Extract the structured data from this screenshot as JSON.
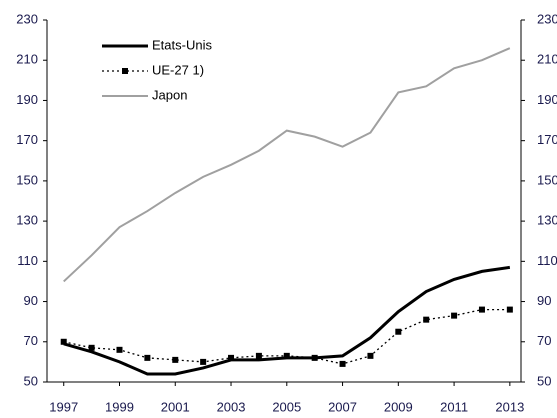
{
  "chart_data": {
    "type": "line",
    "x": [
      1997,
      1998,
      1999,
      2000,
      2001,
      2002,
      2003,
      2004,
      2005,
      2006,
      2007,
      2008,
      2009,
      2010,
      2011,
      2012,
      2013
    ],
    "series": [
      {
        "name": "Etats-Unis",
        "color": "#000000",
        "values": [
          69,
          65,
          60,
          54,
          54,
          57,
          61,
          61,
          62,
          62,
          63,
          72,
          85,
          95,
          101,
          105,
          107
        ]
      },
      {
        "name": "UE-27 1)",
        "color": "#000000",
        "values": [
          70,
          67,
          66,
          62,
          61,
          60,
          62,
          63,
          63,
          62,
          59,
          63,
          75,
          81,
          83,
          86,
          86
        ]
      },
      {
        "name": "Japon",
        "color": "#a0a0a0",
        "values": [
          100,
          113,
          127,
          135,
          144,
          152,
          158,
          165,
          175,
          172,
          167,
          174,
          194,
          197,
          206,
          210,
          216
        ]
      }
    ],
    "xlim": [
      1996.4,
      2013.4
    ],
    "xticks": [
      1997,
      1999,
      2001,
      2003,
      2005,
      2007,
      2009,
      2011,
      2013
    ],
    "ylim": [
      50,
      230
    ],
    "yticks": [
      50,
      70,
      90,
      110,
      130,
      150,
      170,
      190,
      210,
      230
    ],
    "y2lim": [
      50,
      230
    ],
    "y2ticks": [
      50,
      70,
      90,
      110,
      130,
      150,
      170,
      190,
      210,
      230
    ],
    "legend": "upper left"
  }
}
